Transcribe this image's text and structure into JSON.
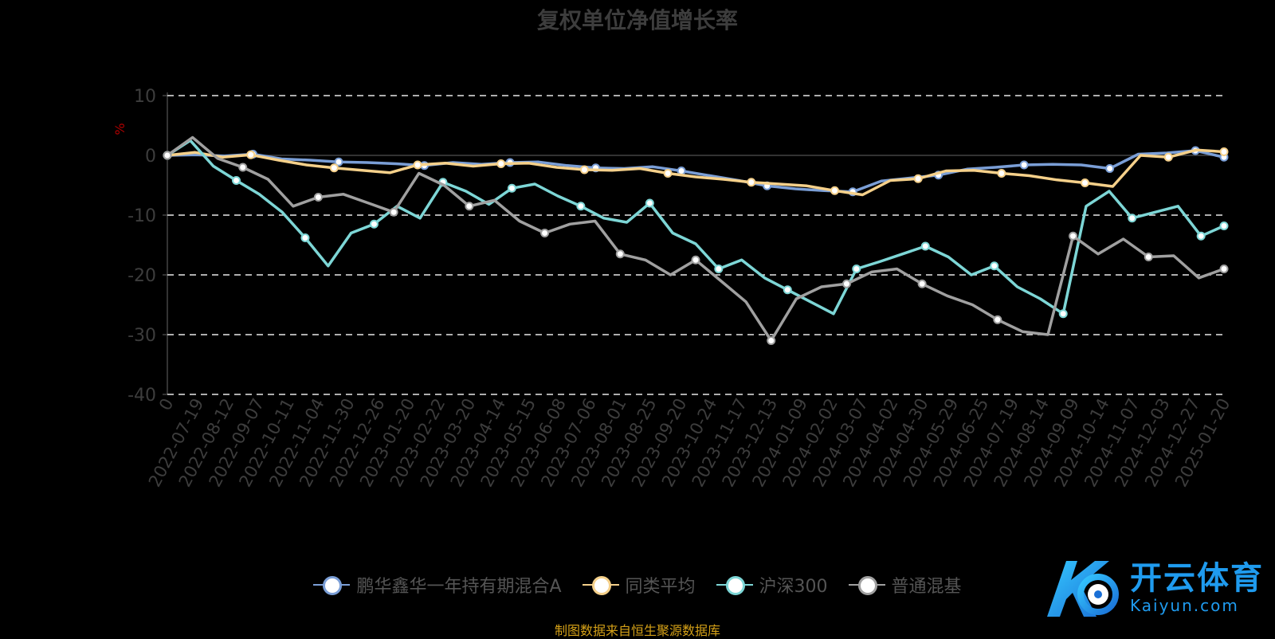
{
  "title": "复权单位净值增长率",
  "source": "制图数据来自恒生聚源数据库",
  "logo": {
    "cn": "开云体育",
    "en": "Kaiyun.com"
  },
  "chart_data": {
    "type": "line",
    "title": "复权单位净值增长率",
    "ylabel": "%",
    "ylim": [
      -40,
      10
    ],
    "yticks": [
      10,
      0,
      -10,
      -20,
      -30,
      -40
    ],
    "xticks": [
      "0",
      "2022-07-19",
      "2022-08-12",
      "2022-09-07",
      "2022-10-11",
      "2022-11-04",
      "2022-11-30",
      "2022-12-26",
      "2023-01-20",
      "2023-02-22",
      "2023-03-20",
      "2023-04-14",
      "2023-05-15",
      "2023-06-08",
      "2023-07-06",
      "2023-08-01",
      "2023-08-25",
      "2023-09-20",
      "2023-10-24",
      "2023-11-17",
      "2023-12-13",
      "2024-01-09",
      "2024-02-02",
      "2024-03-07",
      "2024-04-02",
      "2024-04-30",
      "2024-05-29",
      "2024-06-25",
      "2024-07-19",
      "2024-08-14",
      "2024-09-09",
      "2024-10-14",
      "2024-11-07",
      "2024-12-03",
      "2024-12-27",
      "2025-01-20"
    ],
    "grid": "horizontal dashed",
    "legend_position": "bottom",
    "series": [
      {
        "name": "鹏华鑫华一年持有期混合A",
        "color": "#7a9ed6",
        "values": [
          0,
          0.1,
          -0.1,
          0.2,
          -0.6,
          -0.8,
          -1.1,
          -1.2,
          -1.4,
          -1.7,
          -1.2,
          -1.5,
          -1.2,
          -1.1,
          -1.7,
          -2.1,
          -2.2,
          -1.9,
          -2.6,
          -3.4,
          -4.2,
          -5.1,
          -5.6,
          -5.9,
          -6.1,
          -4.3,
          -3.8,
          -3.3,
          -2.3,
          -2.0,
          -1.6,
          -1.5,
          -1.6,
          -2.2,
          0.2,
          0.4,
          0.8,
          -0.3
        ]
      },
      {
        "name": "同类平均",
        "color": "#f5d08a",
        "values": [
          0,
          0.5,
          -0.3,
          0.1,
          -0.8,
          -1.6,
          -2.1,
          -2.5,
          -2.9,
          -1.6,
          -1.3,
          -1.8,
          -1.4,
          -1.3,
          -2.0,
          -2.4,
          -2.5,
          -2.2,
          -3.0,
          -3.6,
          -4.0,
          -4.5,
          -4.8,
          -5.1,
          -5.9,
          -6.6,
          -4.2,
          -3.9,
          -2.6,
          -2.5,
          -3.0,
          -3.4,
          -4.1,
          -4.6,
          -5.2,
          0.0,
          -0.3,
          0.9,
          0.6
        ]
      },
      {
        "name": "沪深300",
        "color": "#7dd6d6",
        "values": [
          0,
          2.5,
          -1.8,
          -4.2,
          -6.5,
          -9.5,
          -13.8,
          -18.5,
          -13.0,
          -11.5,
          -8.5,
          -10.5,
          -4.5,
          -6.0,
          -8.2,
          -5.5,
          -4.8,
          -6.8,
          -8.5,
          -10.5,
          -11.2,
          -8.0,
          -13.0,
          -14.8,
          -19.0,
          -17.5,
          -20.5,
          -22.5,
          -24.5,
          -26.5,
          -19.0,
          -17.8,
          -16.5,
          -15.2,
          -17.0,
          -20.0,
          -18.5,
          -22.0,
          -24.0,
          -26.5,
          -8.5,
          -6.0,
          -10.5,
          -9.5,
          -8.5,
          -13.5,
          -11.8
        ]
      },
      {
        "name": "普通混基",
        "color": "#a0a0a0",
        "values": [
          0,
          3.0,
          -0.5,
          -2.0,
          -4.0,
          -8.5,
          -7.0,
          -6.5,
          -8.0,
          -9.5,
          -3.0,
          -5.0,
          -8.5,
          -7.5,
          -11.0,
          -13.0,
          -11.5,
          -11.0,
          -16.5,
          -17.5,
          -20.0,
          -17.5,
          -21.0,
          -24.5,
          -31.0,
          -24.0,
          -22.0,
          -21.5,
          -19.5,
          -19.0,
          -21.5,
          -23.5,
          -25.0,
          -27.5,
          -29.5,
          -30.0,
          -13.5,
          -16.5,
          -14.0,
          -17.0,
          -16.8,
          -20.5,
          -19.0
        ]
      }
    ]
  }
}
